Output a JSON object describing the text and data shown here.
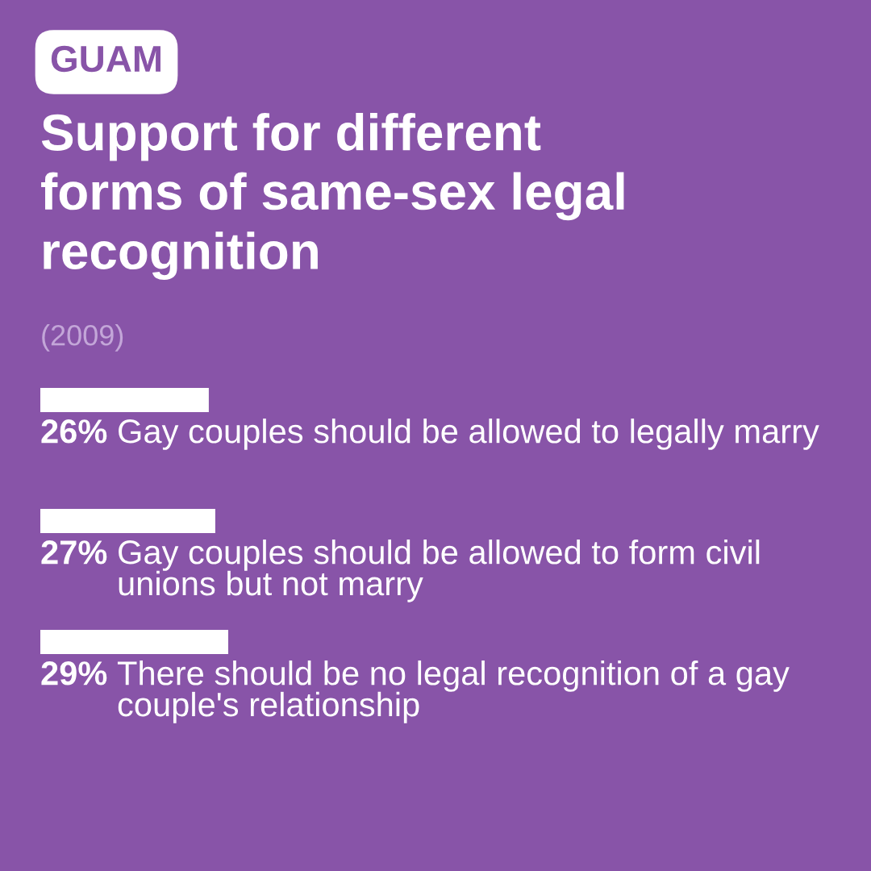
{
  "chart_data": {
    "type": "bar",
    "orientation": "horizontal",
    "title": "Support for different forms of same-sex legal recognition",
    "annotations": [
      "GUAM",
      "(2009)"
    ],
    "categories": [
      "Gay couples should be allowed to legally marry",
      "Gay couples should be allowed to form civil unions but not marry",
      "There should be no legal recognition of a gay couple's relationship"
    ],
    "values": [
      26,
      27,
      29
    ],
    "value_labels": [
      "26%",
      "27%",
      "29%"
    ],
    "color": "#ffffff"
  }
}
